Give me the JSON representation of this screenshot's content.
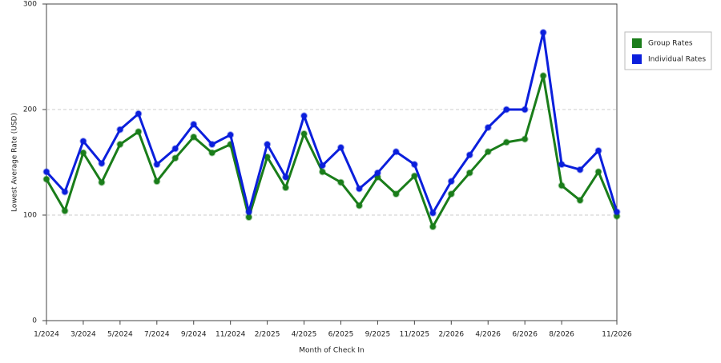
{
  "chart_data": {
    "type": "line",
    "x_label": "Month of Check In",
    "y_label": "Lowest Average Rate (USD)",
    "categories": [
      "1/2024",
      null,
      "3/2024",
      null,
      "5/2024",
      null,
      "7/2024",
      null,
      "9/2024",
      null,
      "11/2024",
      null,
      "2/2025",
      null,
      "4/2025",
      null,
      "6/2025",
      null,
      "9/2025",
      null,
      "11/2025",
      null,
      "2/2026",
      null,
      "4/2026",
      null,
      "6/2026",
      null,
      "8/2026",
      null,
      null,
      "11/2026"
    ],
    "series": [
      {
        "name": "Group Rates",
        "color": "#1a7d1a",
        "values": [
          134,
          104,
          159,
          131,
          167,
          179,
          132,
          154,
          174,
          159,
          167,
          98,
          155,
          126,
          177,
          141,
          131,
          109,
          136,
          120,
          137,
          89,
          120,
          140,
          160,
          169,
          172,
          232,
          128,
          114,
          141,
          99
        ]
      },
      {
        "name": "Individual Rates",
        "color": "#0b1fdc",
        "values": [
          141,
          122,
          170,
          149,
          181,
          196,
          148,
          163,
          186,
          167,
          176,
          103,
          167,
          136,
          194,
          147,
          164,
          125,
          140,
          160,
          148,
          102,
          132,
          157,
          183,
          200,
          200,
          273,
          148,
          143,
          161,
          103
        ]
      }
    ],
    "ylim": [
      0,
      300
    ],
    "yticks": [
      0,
      100,
      200,
      300
    ],
    "grid": true,
    "legend": "right"
  }
}
